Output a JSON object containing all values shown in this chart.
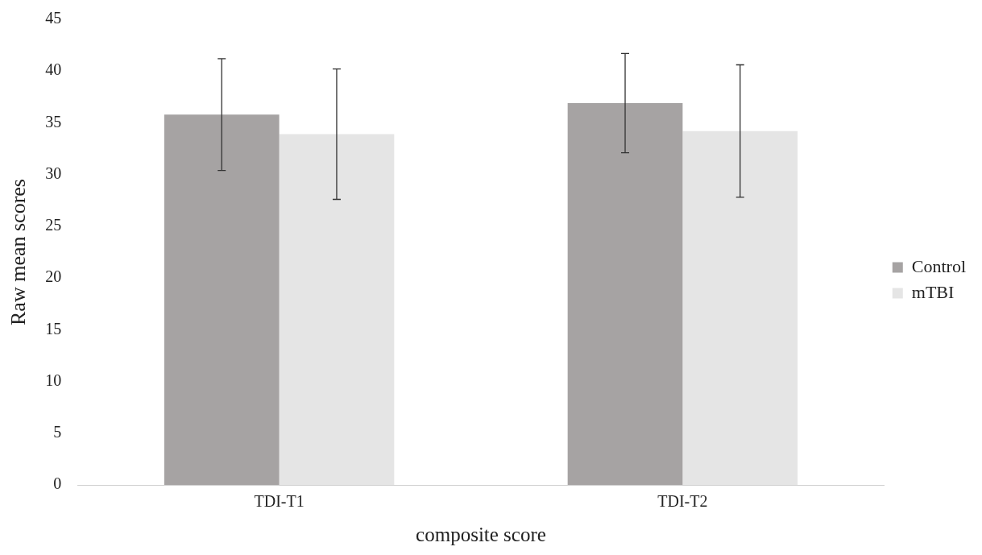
{
  "chart_data": {
    "type": "bar",
    "xlabel": "composite score",
    "ylabel": "Raw mean scores",
    "categories": [
      "TDI-T1",
      "TDI-T2"
    ],
    "series": [
      {
        "name": "Control",
        "color": "#a6a3a3",
        "values": [
          35.8,
          36.9
        ],
        "errors": [
          5.4,
          4.8
        ]
      },
      {
        "name": "mTBI",
        "color": "#e5e5e5",
        "values": [
          33.9,
          34.2
        ],
        "errors": [
          6.3,
          6.4
        ]
      }
    ],
    "ylim": [
      0,
      45
    ],
    "yticks": [
      0,
      5,
      10,
      15,
      20,
      25,
      30,
      35,
      40,
      45
    ],
    "grid": false,
    "legend": "right"
  }
}
